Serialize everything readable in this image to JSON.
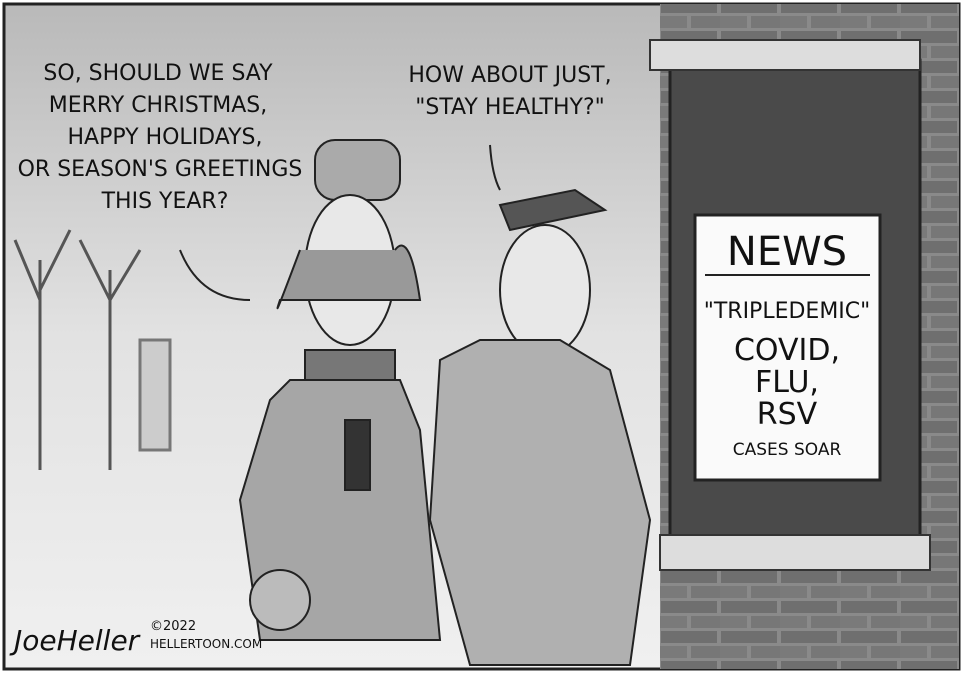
{
  "speech_left": {
    "lines": [
      "SO, SHOULD WE SAY",
      "MERRY CHRISTMAS,",
      "HAPPY HOLIDAYS,",
      "OR SEASON'S GREETINGS",
      "THIS YEAR?"
    ]
  },
  "speech_right": {
    "lines": [
      "HOW ABOUT JUST,",
      "\"STAY HEALTHY?\""
    ]
  },
  "news_screen": {
    "header": "NEWS",
    "lines": [
      "\"TRIPLEDEMIC\"",
      "COVID,",
      "FLU,",
      "RSV"
    ],
    "footer": "CASES SOAR"
  },
  "signature": {
    "name": "JoeHeller",
    "copyright": "©2022",
    "site": "HELLERTOON.COM"
  }
}
